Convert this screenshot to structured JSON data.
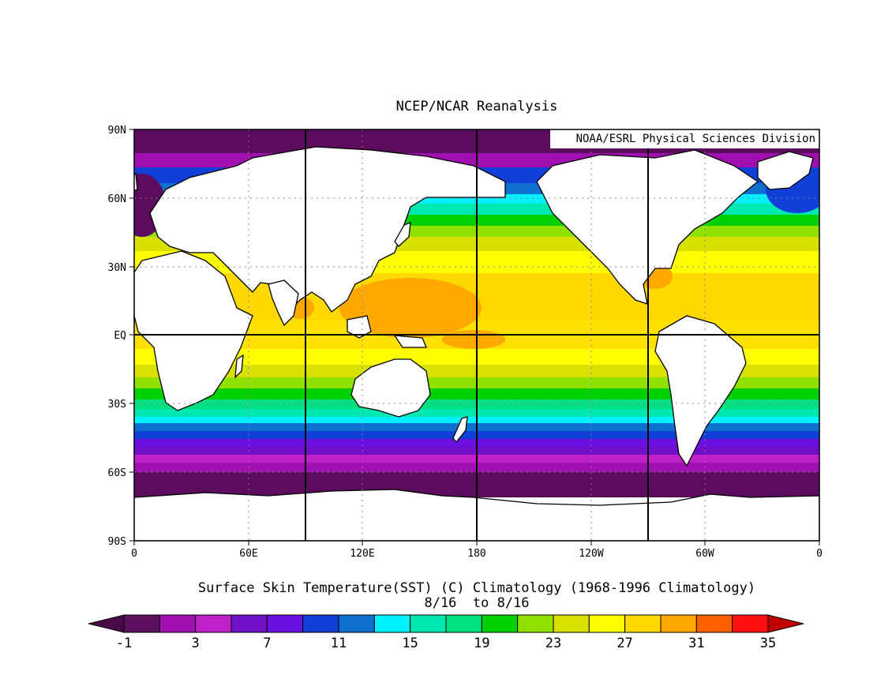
{
  "title": "NCEP/NCAR Reanalysis",
  "credit": "NOAA/ESRL Physical Sciences Division",
  "subtitle": "Surface Skin Temperature(SST) (C) Climatology (1968-1996 Climatology)",
  "date_range": "8/16  to 8/16",
  "lat_labels": [
    "90N",
    "60N",
    "30N",
    "EQ",
    "30S",
    "60S",
    "90S"
  ],
  "lon_labels": [
    "0",
    "60E",
    "120E",
    "180",
    "120W",
    "60W",
    "0"
  ],
  "colorbar": {
    "labels": [
      "-1",
      "3",
      "7",
      "11",
      "15",
      "19",
      "23",
      "27",
      "31",
      "35"
    ],
    "colors": [
      "#4a0a4a",
      "#5c1060",
      "#a010b0",
      "#c020c8",
      "#7010c8",
      "#6a10e0",
      "#1040d8",
      "#1070d0",
      "#00f0ff",
      "#00e8b0",
      "#00e080",
      "#00d000",
      "#90e000",
      "#d8e000",
      "#ffff00",
      "#ffd800",
      "#ffa800",
      "#ff6000",
      "#ff1010",
      "#c00000"
    ]
  }
}
